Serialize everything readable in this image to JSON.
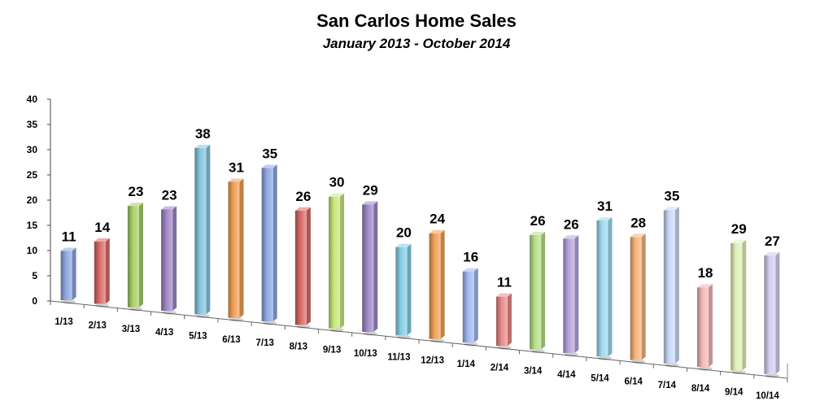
{
  "chart_data": {
    "type": "bar",
    "title": "San Carlos Home Sales",
    "subtitle": "January 2013 - October 2014",
    "xlabel": "",
    "ylabel": "",
    "ylim": [
      0,
      40
    ],
    "yticks": [
      0,
      5,
      10,
      15,
      20,
      25,
      30,
      35,
      40
    ],
    "categories": [
      "1/13",
      "2/13",
      "3/13",
      "4/13",
      "5/13",
      "6/13",
      "7/13",
      "8/13",
      "9/13",
      "10/13",
      "11/13",
      "12/13",
      "1/14",
      "2/14",
      "3/14",
      "4/14",
      "5/14",
      "6/14",
      "7/14",
      "8/14",
      "9/14",
      "10/14"
    ],
    "values": [
      11,
      14,
      23,
      23,
      38,
      31,
      35,
      26,
      30,
      29,
      20,
      24,
      16,
      11,
      26,
      26,
      31,
      28,
      35,
      18,
      29,
      27
    ],
    "data_labels": [
      "11",
      "14",
      "23",
      "23",
      "38",
      "31",
      "35",
      "26",
      "30",
      "29",
      "20",
      "24",
      "16",
      "11",
      "26",
      "26",
      "31",
      "28",
      "35",
      "18",
      "29",
      "27"
    ],
    "colors": [
      "#8fa8e0",
      "#d86a66",
      "#a9d06a",
      "#9f87c7",
      "#86c5de",
      "#f0a156",
      "#8fa8e0",
      "#d86a66",
      "#c8e87a",
      "#9f87c7",
      "#86cfe6",
      "#f0a156",
      "#9fb8f0",
      "#e88a88",
      "#b7e08a",
      "#b6a4dc",
      "#9fdaf0",
      "#f5b47a",
      "#c8d8f8",
      "#f2b8b6",
      "#e2f0b8",
      "#d6cef0"
    ],
    "grid": false,
    "legend": "none"
  }
}
